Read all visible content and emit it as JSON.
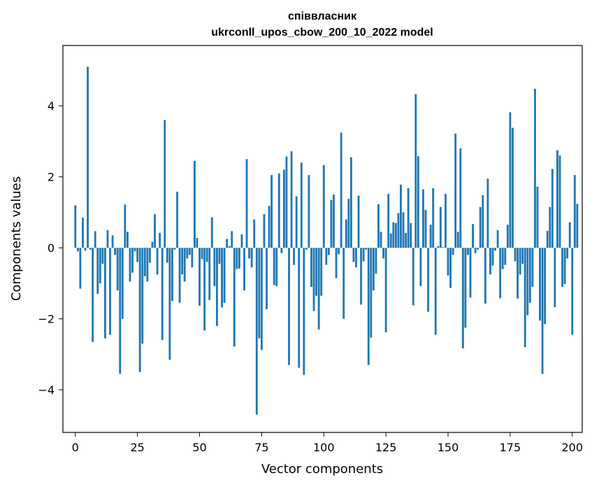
{
  "chart_data": {
    "type": "bar",
    "title_lines": [
      "співвласник",
      "ukrconll_upos_cbow_200_10_2022 model"
    ],
    "xlabel": "Vector components",
    "ylabel": "Components values",
    "xlim": [
      -5,
      204
    ],
    "ylim": [
      -5.2,
      5.7
    ],
    "xticks": [
      0,
      25,
      50,
      75,
      100,
      125,
      150,
      175,
      200
    ],
    "yticks": [
      -4,
      -2,
      0,
      2,
      4
    ],
    "xtick_labels": [
      "0",
      "25",
      "50",
      "75",
      "100",
      "125",
      "150",
      "175",
      "200"
    ],
    "ytick_labels": [
      "−4",
      "−2",
      "0",
      "2",
      "4"
    ],
    "grid": false,
    "legend": "none",
    "bar_color": "#1f77b4",
    "values": [
      1.2,
      -0.1,
      -1.15,
      0.85,
      -0.08,
      5.1,
      -0.05,
      -2.65,
      0.47,
      -1.3,
      -1.0,
      -0.45,
      -2.55,
      0.5,
      -2.45,
      0.35,
      -0.2,
      -1.2,
      -3.55,
      -2.0,
      1.22,
      0.45,
      -0.95,
      -0.7,
      -0.1,
      -0.4,
      -3.5,
      -2.7,
      -0.8,
      -0.95,
      -0.42,
      0.17,
      0.95,
      -0.75,
      0.42,
      -2.6,
      3.6,
      -0.42,
      -3.15,
      -1.5,
      -0.05,
      1.58,
      -1.55,
      -0.75,
      -0.95,
      -0.3,
      -0.2,
      -0.55,
      2.45,
      0.28,
      -1.63,
      -0.32,
      -2.33,
      -0.4,
      -1.47,
      0.86,
      -1.08,
      -2.2,
      -0.45,
      -1.68,
      -1.55,
      0.25,
      0.05,
      0.47,
      -2.78,
      -0.6,
      -0.58,
      0.38,
      -1.2,
      2.5,
      -0.3,
      -0.55,
      0.8,
      -4.7,
      -2.55,
      -2.88,
      0.95,
      -1.73,
      1.18,
      2.05,
      -1.05,
      -1.08,
      2.1,
      -0.15,
      2.2,
      2.57,
      -3.3,
      2.72,
      -0.48,
      1.45,
      -3.38,
      2.4,
      -3.58,
      -0.05,
      2.05,
      -1.1,
      -1.78,
      -1.35,
      -2.3,
      -1.35,
      2.33,
      -0.48,
      -0.2,
      1.35,
      1.5,
      -0.85,
      -0.18,
      3.25,
      -2.0,
      0.8,
      1.38,
      2.55,
      -0.4,
      -0.55,
      1.47,
      -1.6,
      -0.38,
      -0.05,
      -3.3,
      -2.53,
      -1.2,
      -0.73,
      1.23,
      0.45,
      -0.3,
      -2.38,
      1.52,
      0.4,
      0.72,
      0.7,
      0.98,
      1.78,
      1.0,
      0.42,
      1.68,
      0.7,
      -1.62,
      4.33,
      2.58,
      -1.08,
      1.65,
      1.07,
      -1.8,
      0.65,
      1.68,
      -2.45,
      0.05,
      1.15,
      0.02,
      1.52,
      -0.78,
      -1.13,
      -0.2,
      3.22,
      0.45,
      2.8,
      -2.83,
      -2.25,
      -0.2,
      -1.4,
      0.67,
      -0.15,
      -0.05,
      1.15,
      1.48,
      -1.57,
      1.95,
      -0.75,
      -0.5,
      -0.08,
      0.5,
      -1.42,
      -0.6,
      -0.48,
      0.65,
      3.82,
      3.38,
      -0.38,
      -1.43,
      -0.75,
      -0.45,
      -2.8,
      -1.9,
      -1.55,
      -1.1,
      4.48,
      1.72,
      -2.05,
      -3.55,
      -2.15,
      0.48,
      1.15,
      2.22,
      -1.67,
      2.75,
      2.6,
      -1.1,
      -1.02,
      -0.3,
      0.72,
      -2.45,
      2.05,
      1.24
    ]
  }
}
